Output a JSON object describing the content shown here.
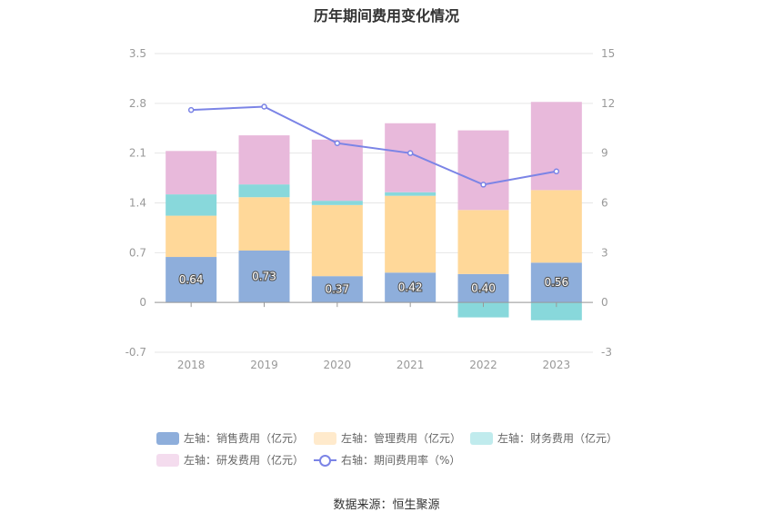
{
  "chart_data": {
    "type": "bar",
    "title": "历年期间费用变化情况",
    "categories": [
      "2018",
      "2019",
      "2020",
      "2021",
      "2022",
      "2023"
    ],
    "left_axis": {
      "min": -0.7,
      "max": 3.5,
      "ticks": [
        "3.5",
        "2.8",
        "2.1",
        "1.4",
        "0.7",
        "0",
        "-0.7"
      ]
    },
    "right_axis": {
      "min": -3,
      "max": 15,
      "ticks": [
        "15",
        "12",
        "9",
        "6",
        "3",
        "0",
        "-3"
      ]
    },
    "series": [
      {
        "name": "左轴：销售费用（亿元）",
        "kind": "bar",
        "axis": "left",
        "color": "#8eaedb",
        "values": [
          0.64,
          0.73,
          0.37,
          0.42,
          0.4,
          0.56
        ],
        "labels": [
          "0.64",
          "0.73",
          "0.37",
          "0.42",
          "0.40",
          "0.56"
        ]
      },
      {
        "name": "左轴：管理费用（亿元）",
        "kind": "bar",
        "axis": "left",
        "color": "#ffd899",
        "values": [
          0.58,
          0.75,
          1.0,
          1.08,
          0.9,
          1.02
        ]
      },
      {
        "name": "左轴：财务费用（亿元）",
        "kind": "bar",
        "axis": "left",
        "color": "#88d8db",
        "values": [
          0.3,
          0.18,
          0.06,
          0.05,
          -0.21,
          -0.25
        ]
      },
      {
        "name": "左轴：研发费用（亿元）",
        "kind": "bar",
        "axis": "left",
        "color": "#e8b9db",
        "values": [
          0.61,
          0.69,
          0.86,
          0.97,
          1.12,
          1.24
        ]
      },
      {
        "name": "右轴：期间费用率（%）",
        "kind": "line",
        "axis": "right",
        "color": "#7b84e6",
        "values": [
          11.6,
          11.8,
          9.6,
          9.0,
          7.1,
          7.9
        ]
      }
    ],
    "legend_position": "bottom",
    "grid": true
  },
  "legend": [
    {
      "label": "左轴：销售费用（亿元）",
      "color": "#8eaedb",
      "type": "bar"
    },
    {
      "label": "左轴：管理费用（亿元）",
      "color": "#ffeacc",
      "type": "bar"
    },
    {
      "label": "左轴：财务费用（亿元）",
      "color": "#c0ebed",
      "type": "bar"
    },
    {
      "label": "左轴：研发费用（亿元）",
      "color": "#f4dcee",
      "type": "bar"
    },
    {
      "label": "右轴：期间费用率（%）",
      "color": "#7b84e6",
      "type": "line"
    }
  ],
  "source": "数据来源：恒生聚源"
}
